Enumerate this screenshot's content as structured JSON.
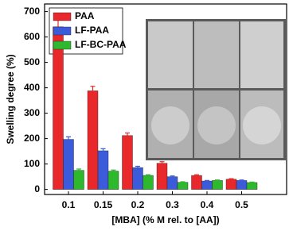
{
  "chart_data": {
    "type": "bar",
    "x_label": "[MBA] (% M rel. to [AA])",
    "y_label": "Swelling degree (%)",
    "categories": [
      "0.1",
      "0.15",
      "0.2",
      "0.3",
      "0.4",
      "0.5"
    ],
    "series": [
      {
        "name": "PAA",
        "color": "#e8282a",
        "values": [
          640,
          388,
          212,
          103,
          55,
          40
        ],
        "errors": [
          30,
          18,
          10,
          6,
          3,
          2
        ]
      },
      {
        "name": "LF-PAA",
        "color": "#3b5bdb",
        "values": [
          197,
          152,
          86,
          50,
          33,
          35
        ],
        "errors": [
          10,
          8,
          5,
          3,
          2,
          2
        ]
      },
      {
        "name": "LF-BC-PAA",
        "color": "#2db82d",
        "values": [
          75,
          72,
          55,
          28,
          35,
          27
        ],
        "errors": [
          5,
          4,
          3,
          2,
          2,
          2
        ]
      }
    ],
    "ylim": [
      -20,
      730
    ],
    "yticks": [
      0,
      100,
      200,
      300,
      400,
      500,
      600,
      700
    ],
    "legend": "upper left"
  }
}
